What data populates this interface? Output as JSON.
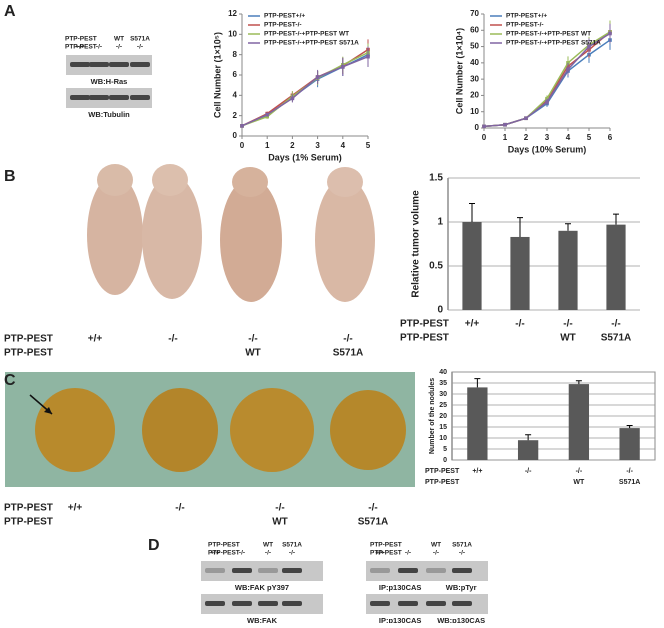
{
  "panel_labels": [
    "A",
    "B",
    "C",
    "D"
  ],
  "blot_a": {
    "row1": "PTP-PEST",
    "row2": "PTP-PEST",
    "lanes_top": [
      null,
      null,
      "WT",
      "S571A"
    ],
    "lanes_bottom": [
      "+/+",
      "-/-",
      "-/-",
      "-/-"
    ],
    "strips": [
      [
        "WB:H-Ras"
      ],
      [
        "WB:Tubulin"
      ]
    ]
  },
  "blot_d1": {
    "row1": "PTP-PEST",
    "row2": "PTP-PEST",
    "lanes_top": [
      null,
      null,
      "WT",
      "S571A"
    ],
    "lanes_bottom": [
      "+/+",
      "-/-",
      "-/-",
      "-/-"
    ],
    "strips": [
      [
        "WB:FAK pY397"
      ],
      [
        "WB:FAK"
      ]
    ]
  },
  "blot_d2": {
    "row1": "PTP-PEST",
    "row2": "PTP-PEST",
    "lanes_top": [
      null,
      null,
      "WT",
      "S571A"
    ],
    "lanes_bottom": [
      "+/+",
      "-/-",
      "-/-",
      "-/-"
    ],
    "strips": [
      [
        "IP:p130CAS",
        "WB:pTyr"
      ],
      [
        "IP:p130CAS",
        "WB:p130CAS"
      ]
    ]
  },
  "photo_b": {
    "row1": "PTP-PEST",
    "row2": "PTP-PEST",
    "top": [
      "+/+",
      "-/-",
      "-/-",
      "-/-"
    ],
    "bottom": [
      null,
      null,
      "WT",
      "S571A"
    ]
  },
  "photo_c": {
    "row1": "PTP-PEST",
    "row2": "PTP-PEST",
    "top": [
      "+/+",
      "-/-",
      "-/-",
      "-/-"
    ],
    "bottom": [
      null,
      null,
      "WT",
      "S571A"
    ]
  },
  "chart_data": [
    {
      "type": "line",
      "x_label": "Days (1% Serum)",
      "y_label": "Cell Number (1×10⁵)",
      "x": [
        0,
        1,
        2,
        3,
        4,
        5
      ],
      "xlim": [
        0,
        5
      ],
      "xticks": [
        0,
        1,
        2,
        3,
        4,
        5
      ],
      "ylim": [
        0,
        12
      ],
      "yticks": [
        0,
        2,
        4,
        6,
        8,
        10,
        12
      ],
      "series": [
        {
          "name": "PTP-PEST+/+",
          "color": "#4a7ebb",
          "values": [
            1,
            2.0,
            3.8,
            5.6,
            6.8,
            8.0
          ],
          "errors": [
            0.1,
            0.2,
            0.4,
            0.8,
            0.9,
            1.2
          ]
        },
        {
          "name": "PTP-PEST-/-",
          "color": "#c0504d",
          "values": [
            1,
            2.2,
            4.0,
            5.8,
            6.9,
            8.5
          ],
          "errors": [
            0.1,
            0.2,
            0.4,
            0.6,
            0.8,
            1.0
          ]
        },
        {
          "name": "PTP-PEST-/-+PTP-PEST WT",
          "color": "#9bbb59",
          "values": [
            1,
            1.9,
            3.9,
            5.7,
            7.0,
            8.2
          ],
          "errors": [
            0.1,
            0.2,
            0.5,
            0.7,
            0.8,
            0.9
          ]
        },
        {
          "name": "PTP-PEST-/-+PTP-PEST S571A",
          "color": "#8064a2",
          "values": [
            1,
            2.1,
            3.7,
            5.8,
            6.8,
            7.8
          ],
          "errors": [
            0.1,
            0.2,
            0.4,
            0.7,
            0.9,
            1.0
          ]
        }
      ]
    },
    {
      "type": "line",
      "x_label": "Days (10% Serum)",
      "y_label": "Cell Number (1×10⁴)",
      "x": [
        0,
        1,
        2,
        3,
        4,
        5,
        6
      ],
      "xlim": [
        0,
        6
      ],
      "xticks": [
        0,
        1,
        2,
        3,
        4,
        5,
        6
      ],
      "ylim": [
        0,
        70
      ],
      "yticks": [
        0,
        10,
        20,
        30,
        40,
        50,
        60,
        70
      ],
      "series": [
        {
          "name": "PTP-PEST+/+",
          "color": "#4a7ebb",
          "values": [
            1,
            2,
            6,
            15,
            35,
            45,
            54
          ],
          "errors": [
            0.5,
            0.5,
            1,
            2,
            4,
            5,
            6
          ]
        },
        {
          "name": "PTP-PEST-/-",
          "color": "#c0504d",
          "values": [
            1,
            2,
            6,
            17,
            38,
            48,
            59
          ],
          "errors": [
            0.5,
            0.5,
            1,
            2,
            4,
            5,
            6
          ]
        },
        {
          "name": "PTP-PEST-/-+PTP-PEST WT",
          "color": "#9bbb59",
          "values": [
            1,
            2,
            6,
            18,
            40,
            51,
            59
          ],
          "errors": [
            0.5,
            0.5,
            1,
            2,
            4,
            5,
            7
          ]
        },
        {
          "name": "PTP-PEST-/-+PTP-PEST S571A",
          "color": "#8064a2",
          "values": [
            1,
            2,
            6,
            16,
            36,
            50,
            58
          ],
          "errors": [
            0.5,
            0.5,
            1,
            2,
            4,
            5,
            6
          ]
        }
      ]
    },
    {
      "type": "bar",
      "y_label": "Relative tumor volume",
      "categories": [
        "+/+",
        "-/-",
        "-/-",
        "-/-"
      ],
      "sublabels": [
        null,
        null,
        "WT",
        "S571A"
      ],
      "row_labels": [
        "PTP-PEST",
        "PTP-PEST"
      ],
      "values": [
        1,
        0.83,
        0.9,
        0.97
      ],
      "errors": [
        0.21,
        0.22,
        0.08,
        0.12
      ],
      "color": "#595959",
      "ylim": [
        0,
        1.5
      ],
      "yticks": [
        0,
        0.5,
        1,
        1.5
      ],
      "grid": true,
      "frame": false
    },
    {
      "type": "bar",
      "y_label": "Number of the nodules",
      "categories": [
        "+/+",
        "-/-",
        "-/-",
        "-/-"
      ],
      "sublabels": [
        null,
        null,
        "WT",
        "S571A"
      ],
      "row_labels": [
        "PTP-PEST",
        "PTP-PEST"
      ],
      "values": [
        33,
        9,
        34.5,
        14.5
      ],
      "errors": [
        4,
        2.5,
        1.5,
        1.2
      ],
      "color": "#595959",
      "ylim": [
        0,
        40
      ],
      "yticks": [
        0,
        5,
        10,
        15,
        20,
        25,
        30,
        35,
        40
      ],
      "grid": true,
      "frame": true
    }
  ]
}
